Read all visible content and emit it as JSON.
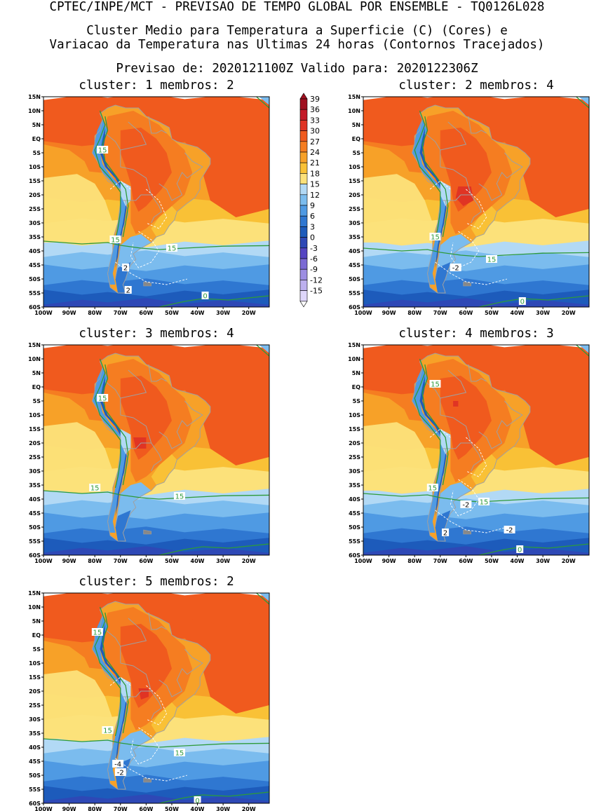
{
  "header": {
    "line1": "CPTEC/INPE/MCT - PREVISAO DE TEMPO GLOBAL POR ENSEMBLE - TQ0126L028",
    "line2": "Cluster Medio para Temperatura a Superficie (C) (Cores) e",
    "line3": "Variacao da Temperatura nas Ultimas 24 horas (Contornos Tracejados)",
    "line4": "Previsao de: 2020121100Z   Valido para: 2020122306Z"
  },
  "colors": {
    "land_border": "#a0a0a0",
    "contour_green": "#2e9a3a",
    "dashed_white": "#ffffff"
  },
  "chart_data": {
    "type": "heatmap",
    "colorbar": {
      "levels": [
        "39",
        "36",
        "33",
        "30",
        "27",
        "24",
        "21",
        "18",
        "15",
        "12",
        "9",
        "6",
        "3",
        "0",
        "-3",
        "-6",
        "-9",
        "-12",
        "-15"
      ],
      "colors": [
        "#a01020",
        "#c41a28",
        "#e03424",
        "#f05a1e",
        "#f57d21",
        "#f7a128",
        "#f9c136",
        "#fce17a",
        "#b2d9f5",
        "#7bbcee",
        "#4f9ae3",
        "#2f77d1",
        "#1d5bbb",
        "#2e48b6",
        "#5545c2",
        "#7b6ad4",
        "#9d8ee2",
        "#bdb0ee",
        "#ded6fa"
      ]
    },
    "x_ticks": [
      "100W",
      "90W",
      "80W",
      "70W",
      "60W",
      "50W",
      "40W",
      "30W",
      "20W"
    ],
    "y_ticks": [
      "15N",
      "10N",
      "5N",
      "EQ",
      "5S",
      "10S",
      "15S",
      "20S",
      "25S",
      "30S",
      "35S",
      "40S",
      "45S",
      "50S",
      "55S",
      "60S"
    ],
    "panels": [
      {
        "name": "cluster-1",
        "title": "cluster: 1  membros: 2",
        "labels": [
          {
            "text": "15",
            "kind": "green",
            "lon": -77,
            "lat": -4
          },
          {
            "text": "15",
            "kind": "green",
            "lon": -72,
            "lat": -36
          },
          {
            "text": "15",
            "kind": "green",
            "lon": -50,
            "lat": -39
          },
          {
            "text": "2",
            "kind": "white",
            "lon": -68,
            "lat": -46
          },
          {
            "text": "2",
            "kind": "white",
            "lon": -67,
            "lat": -54
          },
          {
            "text": "0",
            "kind": "green",
            "lon": -37,
            "lat": -56
          }
        ]
      },
      {
        "name": "cluster-2",
        "title": "cluster: 2  membros: 4",
        "labels": [
          {
            "text": "15",
            "kind": "green",
            "lon": -72,
            "lat": -35
          },
          {
            "text": "15",
            "kind": "green",
            "lon": -50,
            "lat": -43
          },
          {
            "text": "-2",
            "kind": "white",
            "lon": -64,
            "lat": -46
          },
          {
            "text": "0",
            "kind": "green",
            "lon": -38,
            "lat": -58
          }
        ]
      },
      {
        "name": "cluster-3",
        "title": "cluster: 3  membros: 4",
        "labels": [
          {
            "text": "15",
            "kind": "green",
            "lon": -77,
            "lat": -4
          },
          {
            "text": "15",
            "kind": "green",
            "lon": -80,
            "lat": -36
          },
          {
            "text": "15",
            "kind": "green",
            "lon": -47,
            "lat": -39
          }
        ]
      },
      {
        "name": "cluster-4",
        "title": "cluster: 4  membros: 3",
        "labels": [
          {
            "text": "15",
            "kind": "green",
            "lon": -72,
            "lat": 1
          },
          {
            "text": "15",
            "kind": "green",
            "lon": -73,
            "lat": -36
          },
          {
            "text": "15",
            "kind": "green",
            "lon": -53,
            "lat": -41
          },
          {
            "text": "-2",
            "kind": "white",
            "lon": -60,
            "lat": -42
          },
          {
            "text": "-2",
            "kind": "white",
            "lon": -43,
            "lat": -51
          },
          {
            "text": "2",
            "kind": "white",
            "lon": -68,
            "lat": -52
          },
          {
            "text": "0",
            "kind": "green",
            "lon": -39,
            "lat": -58
          }
        ]
      },
      {
        "name": "cluster-5",
        "title": "cluster: 5  membros: 2",
        "labels": [
          {
            "text": "15",
            "kind": "green",
            "lon": -79,
            "lat": 1
          },
          {
            "text": "15",
            "kind": "green",
            "lon": -75,
            "lat": -34
          },
          {
            "text": "15",
            "kind": "green",
            "lon": -47,
            "lat": -42
          },
          {
            "text": "-4",
            "kind": "white",
            "lon": -71,
            "lat": -46
          },
          {
            "text": "-2",
            "kind": "white",
            "lon": -70,
            "lat": -49
          },
          {
            "text": "0",
            "kind": "green",
            "lon": -40,
            "lat": -59
          }
        ]
      }
    ]
  }
}
